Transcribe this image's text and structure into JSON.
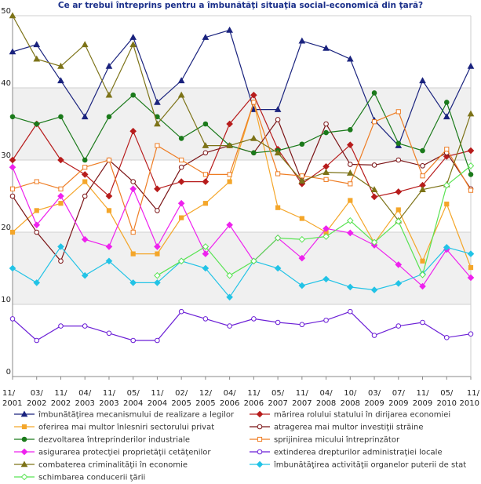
{
  "chart_data": {
    "type": "line",
    "title": "Ce ar trebui întreprins pentru a îmbunătăţi situaţia social-economică din ţară?",
    "xlabel": "",
    "ylabel": "",
    "ylim": [
      0,
      50
    ],
    "yticks": [
      0,
      10,
      20,
      30,
      40,
      50
    ],
    "grid": true,
    "legend_position": "bottom",
    "categories": [
      {
        "top": "11/",
        "bottom": "2001"
      },
      {
        "top": "03/",
        "bottom": "2002"
      },
      {
        "top": "11/",
        "bottom": "2002"
      },
      {
        "top": "04/",
        "bottom": "2003"
      },
      {
        "top": "11/",
        "bottom": "2003"
      },
      {
        "top": "05/",
        "bottom": "2004"
      },
      {
        "top": "11/",
        "bottom": "2004"
      },
      {
        "top": "02/",
        "bottom": "2005"
      },
      {
        "top": "12/",
        "bottom": "2005"
      },
      {
        "top": "04/",
        "bottom": "2006"
      },
      {
        "top": "11/",
        "bottom": "2006"
      },
      {
        "top": "05/",
        "bottom": "2007"
      },
      {
        "top": "11/",
        "bottom": "2007"
      },
      {
        "top": "04/",
        "bottom": "2008"
      },
      {
        "top": "10/",
        "bottom": "2008"
      },
      {
        "top": "03/",
        "bottom": "2009"
      },
      {
        "top": "07/",
        "bottom": "2009"
      },
      {
        "top": "11/",
        "bottom": "2009"
      },
      {
        "top": "05/",
        "bottom": "2010"
      },
      {
        "top": "11/",
        "bottom": "2010"
      }
    ],
    "series": [
      {
        "name": "îmbunătăţirea mecanismului de realizare a legilor",
        "color": "#1a237e",
        "marker": "triangle",
        "filled": true,
        "values": [
          45,
          46,
          41,
          36,
          43,
          47,
          38,
          41,
          47,
          48,
          37,
          37,
          46.5,
          45.5,
          44,
          35.5,
          32,
          41,
          36,
          43
        ]
      },
      {
        "name": "mărirea rolului statului în dirijarea economiei",
        "color": "#b71c1c",
        "marker": "diamond",
        "filled": true,
        "values": [
          30,
          35,
          30,
          28,
          25,
          34,
          26,
          27,
          27,
          35,
          39,
          31.5,
          26.7,
          29.1,
          32.1,
          24.9,
          25.6,
          26.5,
          30.5,
          31.3
        ]
      },
      {
        "name": "oferirea mai multor înlesniri sectorului privat",
        "color": "#f4a62a",
        "marker": "square",
        "filled": true,
        "values": [
          20,
          23,
          24,
          27,
          23,
          17,
          17,
          22,
          24,
          27,
          38,
          23.4,
          21.9,
          20,
          24.4,
          18.5,
          23.1,
          16,
          23.9,
          15.1
        ]
      },
      {
        "name": "atragerea mai multor investiţii străine",
        "color": "#7b1416",
        "marker": "circle",
        "filled": false,
        "values": [
          25,
          20,
          16,
          25,
          30,
          27,
          23,
          29,
          31,
          32,
          31,
          35.6,
          27,
          35,
          29.4,
          29.3,
          30,
          29.2,
          31,
          26
        ]
      },
      {
        "name": "dezvoltarea întreprinderilor industriale",
        "color": "#1b7a1b",
        "marker": "circle",
        "filled": true,
        "values": [
          36,
          35,
          36,
          30,
          36,
          39,
          36,
          33,
          35,
          32,
          31,
          31.3,
          32.2,
          33.8,
          34.2,
          39.3,
          32.3,
          31.3,
          38,
          28
        ]
      },
      {
        "name": "sprijinirea micului întreprinzător",
        "color": "#ee7d24",
        "marker": "square",
        "filled": false,
        "values": [
          26,
          27,
          26,
          29,
          30,
          20,
          32,
          30,
          28,
          28,
          38,
          28.1,
          27.8,
          27.3,
          26.7,
          35.3,
          36.7,
          27.8,
          31.5,
          25.8
        ]
      },
      {
        "name": "asigurarea protecţiei proprietăţii cetăţenilor",
        "color": "#ee22ee",
        "marker": "diamond",
        "filled": true,
        "values": [
          29,
          21,
          25,
          19,
          18,
          26,
          18,
          24,
          17,
          21,
          16,
          19.2,
          16.4,
          20.5,
          19.9,
          18.2,
          15.5,
          12.5,
          17.6,
          13.7
        ]
      },
      {
        "name": "extinderea drepturilor administraţiei locale",
        "color": "#6b1fd6",
        "marker": "circle",
        "filled": false,
        "values": [
          8,
          5,
          7,
          7,
          6,
          5,
          5,
          9,
          8,
          7,
          8,
          7.5,
          7.2,
          7.8,
          9,
          5.7,
          7,
          7.5,
          5.4,
          5.9
        ]
      },
      {
        "name": "combaterea criminalităţii în economie",
        "color": "#7d7318",
        "marker": "triangle",
        "filled": true,
        "values": [
          50,
          44,
          43,
          46,
          39,
          46,
          35,
          39,
          32,
          32,
          33,
          31,
          27.1,
          28.3,
          28.2,
          25.9,
          21.6,
          25.9,
          26.6,
          36.4
        ]
      },
      {
        "name": "îmbunătăţirea activităţii organelor puterii de stat",
        "color": "#22c3e6",
        "marker": "diamond",
        "filled": true,
        "values": [
          15,
          13,
          18,
          14,
          16,
          13,
          13,
          16,
          15,
          11,
          16,
          15,
          12.6,
          13.5,
          12.4,
          12,
          12.9,
          14.2,
          17.9,
          17
        ]
      },
      {
        "name": "schimbarea conducerii ţării",
        "color": "#59e353",
        "marker": "diamond",
        "filled": false,
        "values": [
          null,
          null,
          null,
          null,
          null,
          null,
          14,
          16,
          18,
          14,
          16,
          19.2,
          19,
          19.4,
          21.6,
          18.6,
          21.5,
          14.1,
          26.5,
          29.2
        ]
      }
    ]
  }
}
